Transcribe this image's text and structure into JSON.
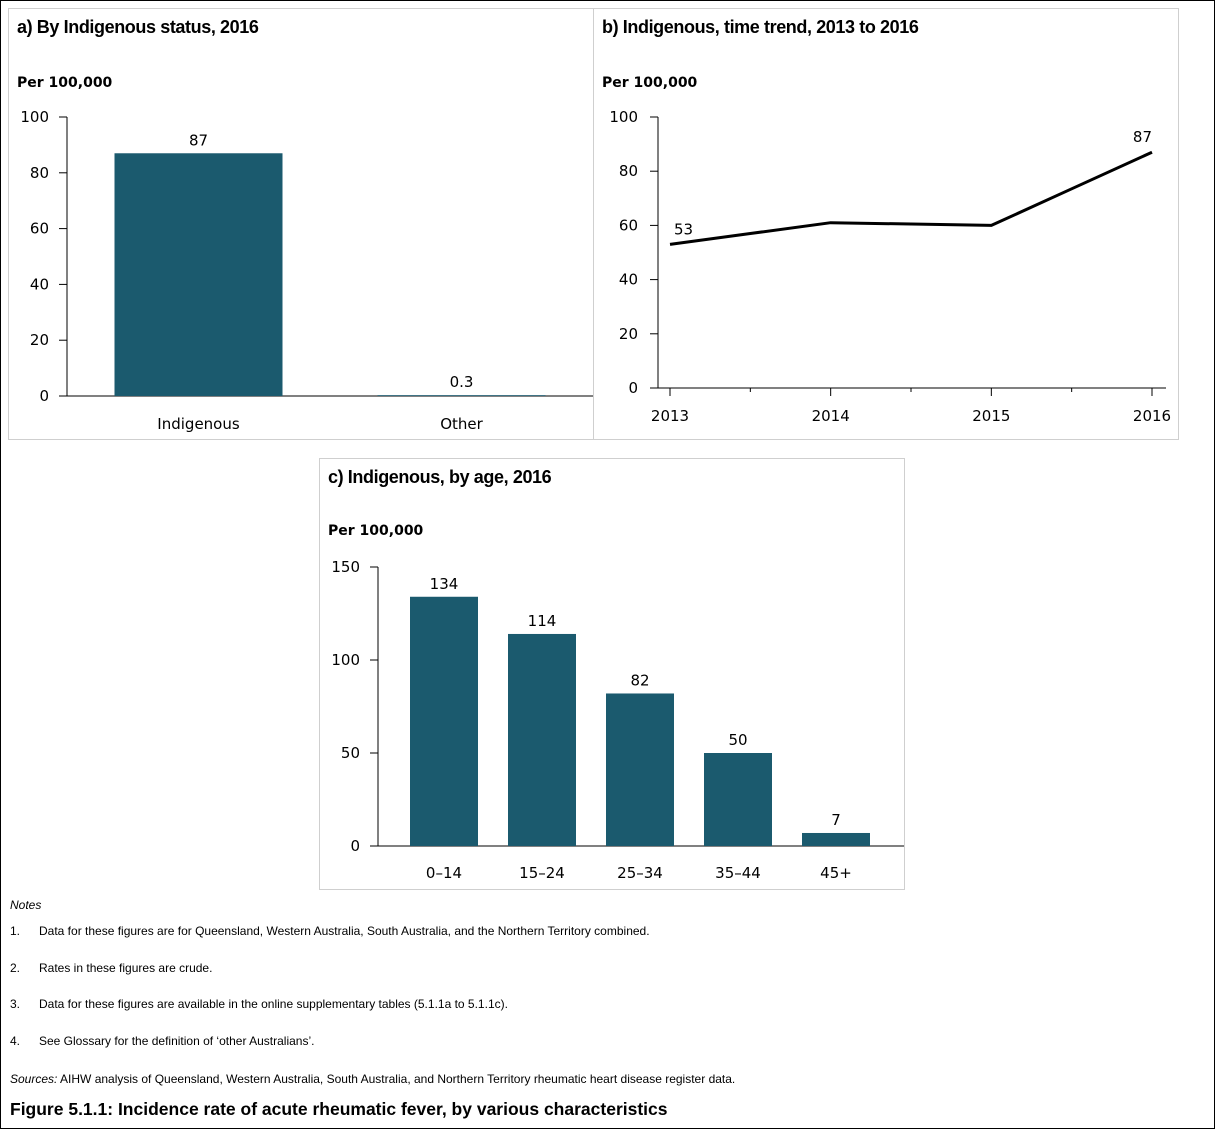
{
  "chart_data": [
    {
      "type": "bar",
      "title": "a) By Indigenous status, 2016",
      "unit_label": "Per 100,000",
      "categories": [
        "Indigenous",
        "Other"
      ],
      "values": [
        87,
        0.3
      ],
      "data_labels": [
        "87",
        "0.3"
      ],
      "yticks": [
        "0",
        "20",
        "40",
        "60",
        "80",
        "100"
      ],
      "ylim": [
        0,
        100
      ],
      "bar_color": "#1b5a6e",
      "grid": false
    },
    {
      "type": "line",
      "title": "b) Indigenous, time trend, 2013 to 2016",
      "unit_label": "Per 100,000",
      "x": [
        "2013",
        "2013.5",
        "2014",
        "2014.5",
        "2015",
        "2015.5",
        "2016"
      ],
      "values": [
        53,
        57,
        61,
        60.5,
        60,
        73.5,
        87
      ],
      "xticks": [
        "2013",
        "2014",
        "2015",
        "2016"
      ],
      "data_labels": [
        {
          "index": 0,
          "text": "53"
        },
        {
          "index": 6,
          "text": "87"
        }
      ],
      "yticks": [
        "0",
        "20",
        "40",
        "60",
        "80",
        "100"
      ],
      "ylim": [
        0,
        100
      ],
      "line_color": "#000000",
      "grid": false
    },
    {
      "type": "bar",
      "title": "c) Indigenous, by age, 2016",
      "unit_label": "Per 100,000",
      "categories": [
        "0–14",
        "15–24",
        "25–34",
        "35–44",
        "45+"
      ],
      "values": [
        134,
        114,
        82,
        50,
        7
      ],
      "data_labels": [
        "134",
        "114",
        "82",
        "50",
        "7"
      ],
      "yticks": [
        "0",
        "50",
        "100",
        "150"
      ],
      "ylim": [
        0,
        150
      ],
      "bar_color": "#1b5a6e",
      "grid": false
    }
  ],
  "notes": {
    "header": "Notes",
    "items": [
      {
        "num": "1.",
        "text": "Data for these figures are for Queensland, Western Australia, South Australia, and the Northern Territory combined."
      },
      {
        "num": "2.",
        "text": "Rates in these figures are crude."
      },
      {
        "num": "3.",
        "text": "Data for these figures are available in the online supplementary tables (5.1.1a to 5.1.1c)."
      },
      {
        "num": "4.",
        "text": "See Glossary for the definition of ‘other Australians’."
      }
    ]
  },
  "sources": {
    "label": "Sources:",
    "text": " AIHW analysis of Queensland, Western Australia, South Australia, and Northern Territory rheumatic heart disease register data."
  },
  "caption": "Figure 5.1.1: Incidence rate of acute rheumatic fever, by various characteristics"
}
